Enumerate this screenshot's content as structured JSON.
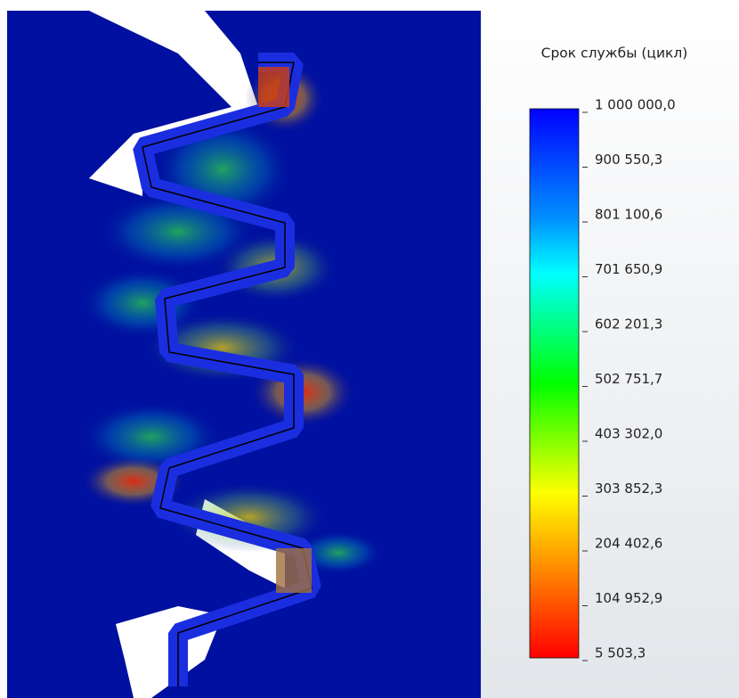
{
  "legend": {
    "title": "Срок службы (цикл)",
    "labels": [
      "1 000 000,0",
      "900 550,3",
      "801 100,6",
      "701 650,9",
      "602 201,3",
      "502 751,7",
      "403 302,0",
      "303 852,3",
      "204 402,6",
      "104 952,9",
      "5 503,3"
    ]
  }
}
